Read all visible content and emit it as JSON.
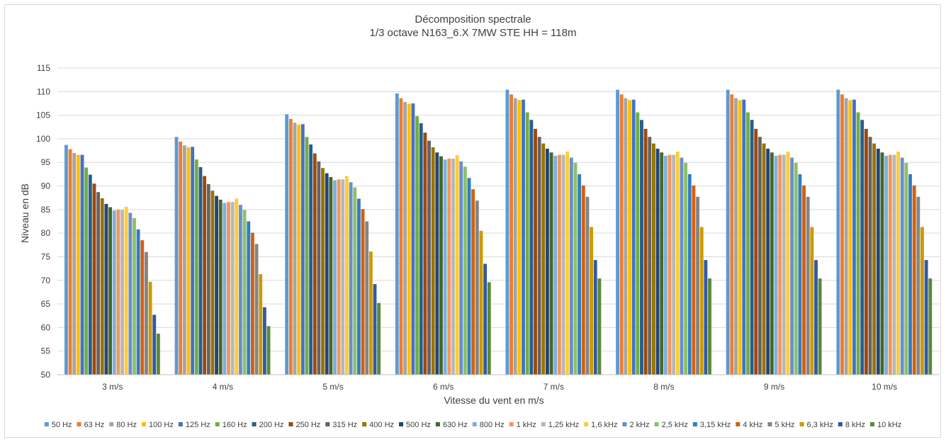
{
  "chart_data": {
    "type": "bar",
    "title": "Décomposition spectrale",
    "subtitle": "1/3 octave  N163_6.X 7MW STE  HH = 118m",
    "xlabel": "Vitesse du vent en m/s",
    "ylabel": "Niveau en dB",
    "ylim": [
      50,
      115
    ],
    "yticks": [
      50,
      55,
      60,
      65,
      70,
      75,
      80,
      85,
      90,
      95,
      100,
      105,
      110,
      115
    ],
    "grid": true,
    "legend_position": "bottom",
    "categories": [
      "3 m/s",
      "4 m/s",
      "5 m/s",
      "6 m/s",
      "7 m/s",
      "8 m/s",
      "9 m/s",
      "10 m/s"
    ],
    "series": [
      {
        "name": "50 Hz",
        "color": "#5b9bd5",
        "values": [
          98.7,
          100.4,
          105.2,
          109.6,
          110.4,
          110.4,
          110.4,
          110.4
        ]
      },
      {
        "name": "63 Hz",
        "color": "#ed7d31",
        "values": [
          97.8,
          99.4,
          104.2,
          108.6,
          109.4,
          109.4,
          109.4,
          109.4
        ]
      },
      {
        "name": "80 Hz",
        "color": "#a5a5a5",
        "values": [
          97.0,
          98.6,
          103.4,
          107.8,
          108.6,
          108.6,
          108.6,
          108.6
        ]
      },
      {
        "name": "100 Hz",
        "color": "#ffc000",
        "values": [
          96.6,
          98.2,
          103.0,
          107.4,
          108.2,
          108.2,
          108.2,
          108.2
        ]
      },
      {
        "name": "125 Hz",
        "color": "#4472c4",
        "values": [
          96.6,
          98.3,
          103.1,
          107.5,
          108.3,
          108.3,
          108.3,
          108.3
        ]
      },
      {
        "name": "160 Hz",
        "color": "#70ad47",
        "values": [
          93.9,
          95.6,
          100.4,
          104.8,
          105.6,
          105.6,
          105.6,
          105.6
        ]
      },
      {
        "name": "200 Hz",
        "color": "#255e91",
        "values": [
          92.4,
          94.0,
          98.8,
          103.3,
          104.0,
          104.0,
          104.0,
          104.0
        ]
      },
      {
        "name": "250 Hz",
        "color": "#9e480e",
        "values": [
          90.5,
          92.1,
          96.9,
          101.3,
          102.1,
          102.1,
          102.1,
          102.1
        ]
      },
      {
        "name": "315 Hz",
        "color": "#636363",
        "values": [
          88.7,
          90.4,
          95.2,
          99.6,
          100.4,
          100.4,
          100.4,
          100.4
        ]
      },
      {
        "name": "400 Hz",
        "color": "#997300",
        "values": [
          87.4,
          89.0,
          93.8,
          98.2,
          99.0,
          99.0,
          99.0,
          99.0
        ]
      },
      {
        "name": "500 Hz",
        "color": "#264478",
        "values": [
          86.2,
          87.9,
          92.7,
          97.1,
          97.9,
          97.9,
          97.9,
          97.9
        ]
      },
      {
        "name": "630 Hz",
        "color": "#43682b",
        "values": [
          85.5,
          87.1,
          91.9,
          96.3,
          97.1,
          97.1,
          97.1,
          97.1
        ]
      },
      {
        "name": "800 Hz",
        "color": "#7cafdd",
        "values": [
          84.8,
          86.4,
          91.2,
          95.6,
          96.4,
          96.4,
          96.4,
          96.4
        ]
      },
      {
        "name": "1 kHz",
        "color": "#f1975a",
        "values": [
          85.0,
          86.6,
          91.4,
          95.8,
          96.6,
          96.6,
          96.6,
          96.6
        ]
      },
      {
        "name": "1,25 kHz",
        "color": "#b7b7b7",
        "values": [
          84.9,
          86.6,
          91.4,
          95.8,
          96.6,
          96.6,
          96.6,
          96.6
        ]
      },
      {
        "name": "1,6 kHz",
        "color": "#ffcd33",
        "values": [
          85.6,
          87.3,
          92.1,
          96.5,
          97.3,
          97.3,
          97.3,
          97.3
        ]
      },
      {
        "name": "2  kHz",
        "color": "#698ed0",
        "values": [
          84.3,
          86.0,
          90.8,
          95.2,
          96.0,
          96.0,
          96.0,
          96.0
        ]
      },
      {
        "name": "2,5 kHz",
        "color": "#8cc168",
        "values": [
          83.2,
          84.9,
          89.7,
          94.1,
          94.9,
          94.9,
          94.9,
          94.9
        ]
      },
      {
        "name": "3,15 kHz",
        "color": "#327dc2",
        "values": [
          80.8,
          82.5,
          87.3,
          91.7,
          92.5,
          92.5,
          92.5,
          92.5
        ]
      },
      {
        "name": "4 kHz",
        "color": "#d26012",
        "values": [
          78.5,
          80.1,
          85.1,
          89.3,
          90.1,
          90.1,
          90.1,
          90.1
        ]
      },
      {
        "name": "5 kHz",
        "color": "#848484",
        "values": [
          76.0,
          77.7,
          82.5,
          86.9,
          87.7,
          87.7,
          87.7,
          87.7
        ]
      },
      {
        "name": "6,3 kHz",
        "color": "#cc9a00",
        "values": [
          69.7,
          71.3,
          76.1,
          80.5,
          81.3,
          81.3,
          81.3,
          81.3
        ]
      },
      {
        "name": "8 kHz",
        "color": "#335aa1",
        "values": [
          62.7,
          64.3,
          69.2,
          73.5,
          74.3,
          74.3,
          74.3,
          74.3
        ]
      },
      {
        "name": "10 kHz",
        "color": "#5a8a39",
        "values": [
          58.7,
          60.3,
          65.2,
          69.6,
          70.4,
          70.4,
          70.4,
          70.4
        ]
      }
    ]
  }
}
